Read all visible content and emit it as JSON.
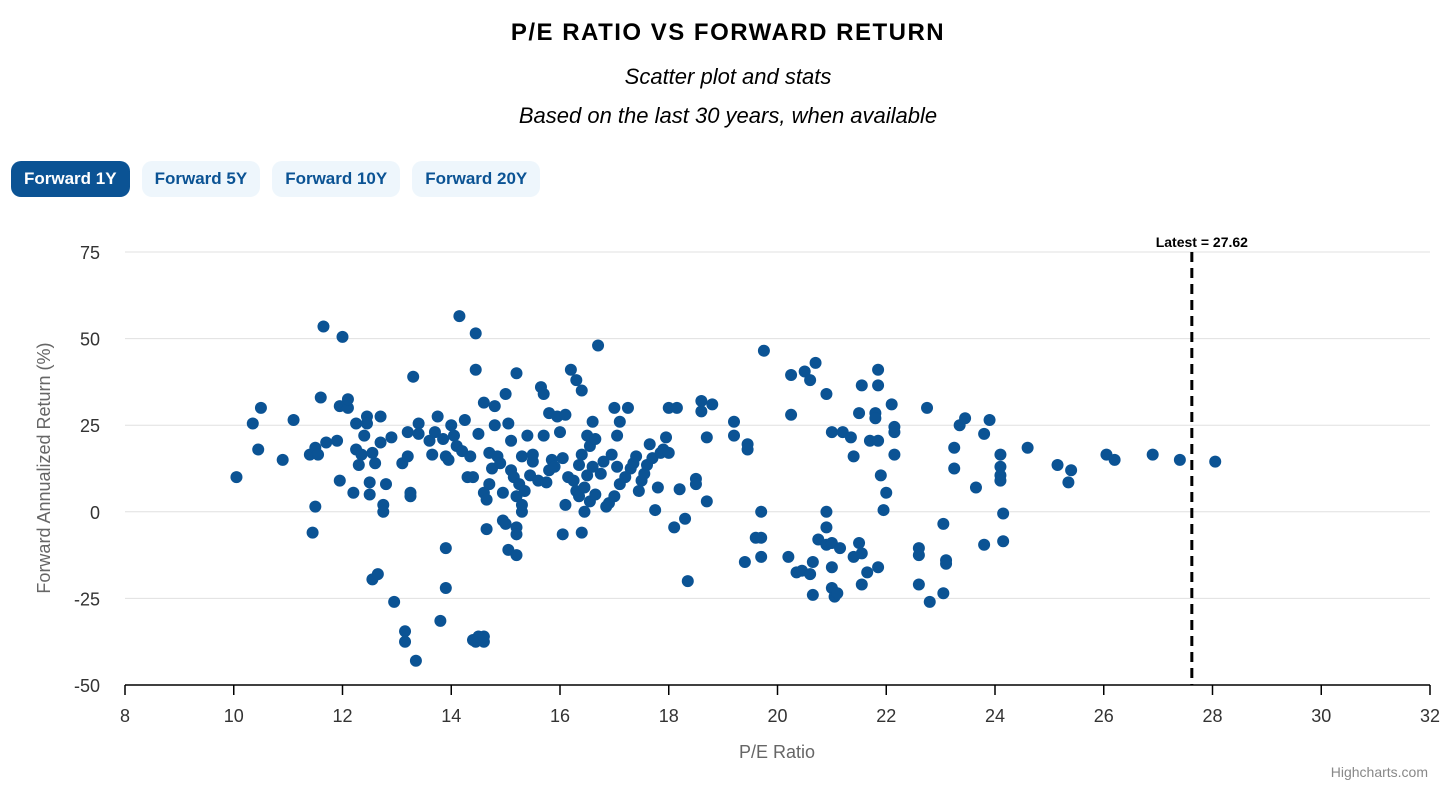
{
  "header": {
    "title": "P/E RATIO VS FORWARD RETURN",
    "subtitle": "Scatter plot and stats",
    "note": "Based on the last 30 years, when available"
  },
  "tabs": [
    {
      "label": "Forward 1Y",
      "active": true
    },
    {
      "label": "Forward 5Y",
      "active": false
    },
    {
      "label": "Forward 10Y",
      "active": false
    },
    {
      "label": "Forward 20Y",
      "active": false
    }
  ],
  "credit": "Highcharts.com",
  "colors": {
    "point": "#0b5394",
    "accent": "#0b5394",
    "tab_bg": "#eef6fc"
  },
  "chart_data": {
    "type": "scatter",
    "title": "P/E RATIO VS FORWARD RETURN",
    "xlabel": "P/E Ratio",
    "ylabel": "Forward Annualized Return (%)",
    "xlim": [
      8,
      32
    ],
    "ylim": [
      -50,
      75
    ],
    "xticks": [
      8,
      10,
      12,
      14,
      16,
      18,
      20,
      22,
      24,
      26,
      28,
      30,
      32
    ],
    "yticks": [
      75,
      50,
      25,
      0,
      -25,
      -50
    ],
    "gridlines": "horizontal",
    "reference_line": {
      "x": 27.62,
      "label": "Latest = 27.62",
      "style": "dashed"
    },
    "series": [
      {
        "name": "Forward 1Y",
        "points": [
          [
            10.05,
            10
          ],
          [
            10.35,
            25.5
          ],
          [
            10.45,
            18
          ],
          [
            10.5,
            30
          ],
          [
            10.9,
            15
          ],
          [
            11.1,
            26.5
          ],
          [
            11.4,
            16.5
          ],
          [
            11.45,
            -6
          ],
          [
            11.5,
            1.5
          ],
          [
            11.5,
            18.5
          ],
          [
            11.55,
            16.5
          ],
          [
            11.6,
            33
          ],
          [
            11.65,
            53.5
          ],
          [
            11.7,
            20
          ],
          [
            11.9,
            20.5
          ],
          [
            11.95,
            30.5
          ],
          [
            11.95,
            9
          ],
          [
            12.0,
            50.5
          ],
          [
            12.1,
            30
          ],
          [
            12.1,
            32.5
          ],
          [
            12.2,
            5.5
          ],
          [
            12.25,
            25.5
          ],
          [
            12.25,
            18
          ],
          [
            12.3,
            13.5
          ],
          [
            12.35,
            16.5
          ],
          [
            12.4,
            22
          ],
          [
            12.45,
            27.5
          ],
          [
            12.45,
            25.5
          ],
          [
            12.5,
            8.5
          ],
          [
            12.5,
            5
          ],
          [
            12.55,
            17
          ],
          [
            12.55,
            -19.5
          ],
          [
            12.6,
            14
          ],
          [
            12.65,
            -18
          ],
          [
            12.7,
            20
          ],
          [
            12.7,
            27.5
          ],
          [
            12.75,
            2
          ],
          [
            12.75,
            0
          ],
          [
            12.8,
            8
          ],
          [
            12.9,
            21.5
          ],
          [
            12.95,
            -26
          ],
          [
            13.1,
            14
          ],
          [
            13.15,
            -34.5
          ],
          [
            13.15,
            -37.5
          ],
          [
            13.2,
            16
          ],
          [
            13.2,
            23
          ],
          [
            13.25,
            5.5
          ],
          [
            13.25,
            4.5
          ],
          [
            13.3,
            39
          ],
          [
            13.35,
            -43
          ],
          [
            13.4,
            25.5
          ],
          [
            13.4,
            22.5
          ],
          [
            13.6,
            20.5
          ],
          [
            13.65,
            16.5
          ],
          [
            13.7,
            23
          ],
          [
            13.75,
            27.5
          ],
          [
            13.8,
            -31.5
          ],
          [
            13.85,
            21
          ],
          [
            13.9,
            -10.5
          ],
          [
            13.9,
            -22
          ],
          [
            13.9,
            16
          ],
          [
            13.95,
            15
          ],
          [
            14.0,
            25
          ],
          [
            14.05,
            22
          ],
          [
            14.1,
            19
          ],
          [
            14.15,
            56.5
          ],
          [
            14.2,
            17.5
          ],
          [
            14.25,
            26.5
          ],
          [
            14.3,
            10
          ],
          [
            14.35,
            16
          ],
          [
            14.4,
            10
          ],
          [
            14.4,
            -37
          ],
          [
            14.45,
            -37.5
          ],
          [
            14.45,
            41
          ],
          [
            14.45,
            51.5
          ],
          [
            14.5,
            -36
          ],
          [
            14.5,
            22.5
          ],
          [
            14.6,
            -37.5
          ],
          [
            14.6,
            -36
          ],
          [
            14.6,
            31.5
          ],
          [
            14.6,
            5.5
          ],
          [
            14.65,
            -5
          ],
          [
            14.65,
            3.5
          ],
          [
            14.7,
            8
          ],
          [
            14.7,
            17
          ],
          [
            14.75,
            12.5
          ],
          [
            14.8,
            30.5
          ],
          [
            14.8,
            25
          ],
          [
            14.85,
            16
          ],
          [
            14.9,
            14
          ],
          [
            14.95,
            5.5
          ],
          [
            14.95,
            -2.5
          ],
          [
            15.0,
            -3.5
          ],
          [
            15.0,
            34
          ],
          [
            15.05,
            -11
          ],
          [
            15.05,
            25.5
          ],
          [
            15.1,
            20.5
          ],
          [
            15.1,
            12
          ],
          [
            15.15,
            10
          ],
          [
            15.2,
            4.5
          ],
          [
            15.2,
            -4.5
          ],
          [
            15.2,
            -6.5
          ],
          [
            15.2,
            40
          ],
          [
            15.2,
            -12.5
          ],
          [
            15.25,
            8
          ],
          [
            15.3,
            16
          ],
          [
            15.3,
            0
          ],
          [
            15.3,
            2
          ],
          [
            15.35,
            6
          ],
          [
            15.4,
            22
          ],
          [
            15.45,
            10.5
          ],
          [
            15.5,
            14.5
          ],
          [
            15.5,
            16.5
          ],
          [
            15.6,
            9
          ],
          [
            15.65,
            36
          ],
          [
            15.7,
            22
          ],
          [
            15.7,
            34
          ],
          [
            15.75,
            8.5
          ],
          [
            15.8,
            12
          ],
          [
            15.8,
            28.5
          ],
          [
            15.85,
            15
          ],
          [
            15.9,
            13
          ],
          [
            15.95,
            27.5
          ],
          [
            16.0,
            23
          ],
          [
            16.05,
            -6.5
          ],
          [
            16.05,
            15.5
          ],
          [
            16.1,
            28
          ],
          [
            16.1,
            2
          ],
          [
            16.15,
            10
          ],
          [
            16.2,
            41
          ],
          [
            16.25,
            9
          ],
          [
            16.3,
            38
          ],
          [
            16.3,
            6
          ],
          [
            16.35,
            13.5
          ],
          [
            16.35,
            4.5
          ],
          [
            16.4,
            16.5
          ],
          [
            16.4,
            -6
          ],
          [
            16.4,
            35
          ],
          [
            16.45,
            0
          ],
          [
            16.45,
            7
          ],
          [
            16.5,
            22
          ],
          [
            16.5,
            10.5
          ],
          [
            16.55,
            3
          ],
          [
            16.55,
            19
          ],
          [
            16.6,
            13
          ],
          [
            16.6,
            26
          ],
          [
            16.65,
            21
          ],
          [
            16.65,
            5
          ],
          [
            16.7,
            48
          ],
          [
            16.75,
            11
          ],
          [
            16.8,
            14.5
          ],
          [
            16.85,
            1.5
          ],
          [
            16.9,
            2.5
          ],
          [
            16.95,
            16.5
          ],
          [
            17.0,
            4.5
          ],
          [
            17.0,
            30
          ],
          [
            17.05,
            13
          ],
          [
            17.05,
            22
          ],
          [
            17.1,
            26
          ],
          [
            17.1,
            8
          ],
          [
            17.2,
            10
          ],
          [
            17.25,
            30
          ],
          [
            17.3,
            12.5
          ],
          [
            17.35,
            14
          ],
          [
            17.4,
            16
          ],
          [
            17.45,
            6
          ],
          [
            17.5,
            9
          ],
          [
            17.55,
            11
          ],
          [
            17.6,
            13.5
          ],
          [
            17.65,
            19.5
          ],
          [
            17.7,
            15.5
          ],
          [
            17.75,
            0.5
          ],
          [
            17.8,
            7
          ],
          [
            17.85,
            17
          ],
          [
            17.9,
            18
          ],
          [
            17.95,
            21.5
          ],
          [
            18.0,
            17
          ],
          [
            18.0,
            30
          ],
          [
            18.1,
            -4.5
          ],
          [
            18.15,
            30
          ],
          [
            18.2,
            6.5
          ],
          [
            18.3,
            -2
          ],
          [
            18.35,
            -20
          ],
          [
            18.5,
            9.5
          ],
          [
            18.5,
            8
          ],
          [
            18.6,
            29
          ],
          [
            18.6,
            32
          ],
          [
            18.7,
            21.5
          ],
          [
            18.7,
            3
          ],
          [
            18.8,
            31
          ],
          [
            19.2,
            26
          ],
          [
            19.2,
            22
          ],
          [
            19.4,
            -14.5
          ],
          [
            19.45,
            19.5
          ],
          [
            19.45,
            18
          ],
          [
            19.6,
            -7.5
          ],
          [
            19.7,
            0
          ],
          [
            19.7,
            -7.5
          ],
          [
            19.7,
            -13
          ],
          [
            19.75,
            46.5
          ],
          [
            20.2,
            -13
          ],
          [
            20.25,
            39.5
          ],
          [
            20.25,
            28
          ],
          [
            20.35,
            -17.5
          ],
          [
            20.45,
            -17
          ],
          [
            20.5,
            40.5
          ],
          [
            20.6,
            38
          ],
          [
            20.6,
            -18
          ],
          [
            20.65,
            -14.5
          ],
          [
            20.65,
            -24
          ],
          [
            20.7,
            43
          ],
          [
            20.75,
            -8
          ],
          [
            20.9,
            34
          ],
          [
            20.9,
            -9.5
          ],
          [
            20.9,
            0
          ],
          [
            20.9,
            -4.5
          ],
          [
            21.0,
            23
          ],
          [
            21.0,
            -9
          ],
          [
            21.0,
            -16
          ],
          [
            21.0,
            -22
          ],
          [
            21.05,
            -24.5
          ],
          [
            21.1,
            -23.5
          ],
          [
            21.15,
            -10.5
          ],
          [
            21.2,
            23
          ],
          [
            21.35,
            21.5
          ],
          [
            21.4,
            -13
          ],
          [
            21.4,
            16
          ],
          [
            21.5,
            28.5
          ],
          [
            21.5,
            -9
          ],
          [
            21.55,
            36.5
          ],
          [
            21.55,
            -12
          ],
          [
            21.55,
            -21
          ],
          [
            21.65,
            -17.5
          ],
          [
            21.7,
            20.5
          ],
          [
            21.8,
            28.5
          ],
          [
            21.8,
            27
          ],
          [
            21.85,
            41
          ],
          [
            21.85,
            36.5
          ],
          [
            21.85,
            -16
          ],
          [
            21.85,
            20.5
          ],
          [
            21.9,
            10.5
          ],
          [
            21.95,
            0.5
          ],
          [
            22.0,
            5.5
          ],
          [
            22.1,
            31
          ],
          [
            22.15,
            23
          ],
          [
            22.15,
            24.5
          ],
          [
            22.15,
            16.5
          ],
          [
            22.6,
            -21
          ],
          [
            22.6,
            -12.5
          ],
          [
            22.6,
            -10.5
          ],
          [
            22.75,
            30
          ],
          [
            22.8,
            -26
          ],
          [
            23.05,
            -3.5
          ],
          [
            23.05,
            -23.5
          ],
          [
            23.1,
            -14
          ],
          [
            23.1,
            -15
          ],
          [
            23.25,
            12.5
          ],
          [
            23.25,
            18.5
          ],
          [
            23.35,
            25
          ],
          [
            23.45,
            27
          ],
          [
            23.65,
            7
          ],
          [
            23.8,
            -9.5
          ],
          [
            23.8,
            22.5
          ],
          [
            23.9,
            26.5
          ],
          [
            24.1,
            16.5
          ],
          [
            24.1,
            13
          ],
          [
            24.1,
            10.5
          ],
          [
            24.1,
            9
          ],
          [
            24.15,
            -0.5
          ],
          [
            24.15,
            -8.5
          ],
          [
            24.6,
            18.5
          ],
          [
            25.15,
            13.5
          ],
          [
            25.35,
            8.5
          ],
          [
            25.4,
            12
          ],
          [
            26.05,
            16.5
          ],
          [
            26.2,
            15
          ],
          [
            26.9,
            16.5
          ],
          [
            27.4,
            15
          ],
          [
            28.05,
            14.5
          ]
        ]
      }
    ]
  }
}
